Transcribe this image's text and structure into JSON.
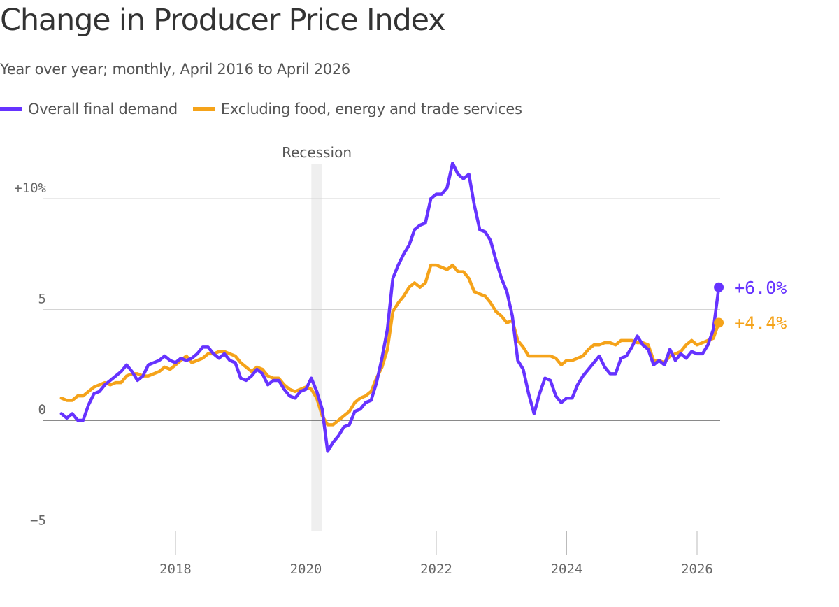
{
  "title": "Change in Producer Price Index",
  "subtitle": "Year over year; monthly, April 2016 to April 2026",
  "legend": [
    {
      "label": "Overall final demand",
      "color": "#6633ff"
    },
    {
      "label": "Excluding food, energy and trade services",
      "color": "#f5a31a"
    }
  ],
  "chart_data": {
    "type": "line",
    "title": "Change in Producer Price Index",
    "subtitle": "Year over year; monthly, April 2016 to April 2026",
    "x_start": "2016-04",
    "x_end": "2026-04",
    "xlim": [
      2016.0,
      2026.33
    ],
    "ylim": [
      -5,
      12
    ],
    "grid": true,
    "y_ticks": [
      {
        "value": 10,
        "label": "+10%"
      },
      {
        "value": 5,
        "label": "5"
      },
      {
        "value": 0,
        "label": "0"
      },
      {
        "value": -5,
        "label": "−5"
      }
    ],
    "x_ticks": [
      {
        "value": 2018,
        "label": "2018"
      },
      {
        "value": 2020,
        "label": "2020"
      },
      {
        "value": 2022,
        "label": "2022"
      },
      {
        "value": 2024,
        "label": "2024"
      },
      {
        "value": 2026,
        "label": "2026"
      }
    ],
    "annotations": [
      {
        "type": "band",
        "label": "Recession",
        "x_start": "2020-02",
        "x_end": "2020-04"
      }
    ],
    "series": [
      {
        "name": "Overall final demand",
        "color": "#6633ff",
        "end_label": "+6.0%",
        "values": [
          0.3,
          0.1,
          0.3,
          0.0,
          0.0,
          0.7,
          1.2,
          1.3,
          1.6,
          1.8,
          2.0,
          2.2,
          2.5,
          2.2,
          1.8,
          2.0,
          2.5,
          2.6,
          2.7,
          2.9,
          2.7,
          2.6,
          2.8,
          2.7,
          2.8,
          3.0,
          3.3,
          3.3,
          3.0,
          2.8,
          3.0,
          2.7,
          2.6,
          1.9,
          1.8,
          2.0,
          2.3,
          2.1,
          1.6,
          1.8,
          1.8,
          1.4,
          1.1,
          1.0,
          1.3,
          1.4,
          1.9,
          1.3,
          0.5,
          -1.4,
          -1.0,
          -0.7,
          -0.3,
          -0.2,
          0.4,
          0.5,
          0.8,
          0.9,
          1.7,
          2.8,
          4.1,
          6.4,
          7.0,
          7.5,
          7.9,
          8.6,
          8.8,
          8.9,
          10.0,
          10.2,
          10.2,
          10.5,
          11.6,
          11.1,
          10.9,
          11.1,
          9.7,
          8.6,
          8.5,
          8.1,
          7.2,
          6.4,
          5.8,
          4.7,
          2.7,
          2.3,
          1.2,
          0.3,
          1.2,
          1.9,
          1.8,
          1.1,
          0.8,
          1.0,
          1.0,
          1.6,
          2.0,
          2.3,
          2.6,
          2.9,
          2.4,
          2.1,
          2.1,
          2.8,
          2.9,
          3.3,
          3.8,
          3.4,
          3.2,
          2.5,
          2.7,
          2.5,
          3.2,
          2.7,
          3.0,
          2.8,
          3.1,
          3.0,
          3.0,
          3.4,
          4.1,
          6.0
        ]
      },
      {
        "name": "Excluding food, energy and trade services",
        "color": "#f5a31a",
        "end_label": "+4.4%",
        "values": [
          1.0,
          0.9,
          0.9,
          1.1,
          1.1,
          1.3,
          1.5,
          1.6,
          1.7,
          1.6,
          1.7,
          1.7,
          2.0,
          2.1,
          2.1,
          2.0,
          2.0,
          2.1,
          2.2,
          2.4,
          2.3,
          2.5,
          2.7,
          2.9,
          2.6,
          2.7,
          2.8,
          3.0,
          3.0,
          3.1,
          3.1,
          3.0,
          2.9,
          2.6,
          2.4,
          2.2,
          2.4,
          2.3,
          2.0,
          1.9,
          1.9,
          1.6,
          1.4,
          1.3,
          1.4,
          1.5,
          1.4,
          1.0,
          0.2,
          -0.2,
          -0.2,
          0.0,
          0.2,
          0.4,
          0.8,
          1.0,
          1.1,
          1.3,
          1.9,
          2.4,
          3.2,
          4.9,
          5.3,
          5.6,
          6.0,
          6.2,
          6.0,
          6.2,
          7.0,
          7.0,
          6.9,
          6.8,
          7.0,
          6.7,
          6.7,
          6.4,
          5.8,
          5.7,
          5.6,
          5.3,
          4.9,
          4.7,
          4.4,
          4.5,
          3.6,
          3.3,
          2.9,
          2.9,
          2.9,
          2.9,
          2.9,
          2.8,
          2.5,
          2.7,
          2.7,
          2.8,
          2.9,
          3.2,
          3.4,
          3.4,
          3.5,
          3.5,
          3.4,
          3.6,
          3.6,
          3.6,
          3.5,
          3.5,
          3.4,
          2.7,
          2.7,
          2.6,
          2.9,
          3.0,
          3.1,
          3.4,
          3.6,
          3.4,
          3.5,
          3.6,
          3.7,
          4.4
        ]
      }
    ]
  }
}
